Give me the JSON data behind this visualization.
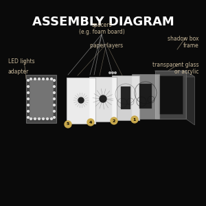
{
  "title": "ASSEMBLY DIAGRAM",
  "bg_color": "#0a0a0a",
  "title_color": "#ffffff",
  "label_color": "#c8b89a",
  "title_fontsize": 13,
  "label_fontsize": 5.5,
  "labels": {
    "led_lights": "LED lights",
    "spacers": "spacers\n(e.g. foam board)",
    "transparent": "transparent glass\nor acrylic",
    "adapter": "adapter",
    "paper_layers": "paper layers",
    "shadow_box": "shadow box\nframe"
  },
  "layer_numbers": [
    "5",
    "4",
    "2",
    "1"
  ],
  "number_bg_color": "#c8a84b",
  "number_text_color": "#000000",
  "line_color": "#aaaaaa"
}
